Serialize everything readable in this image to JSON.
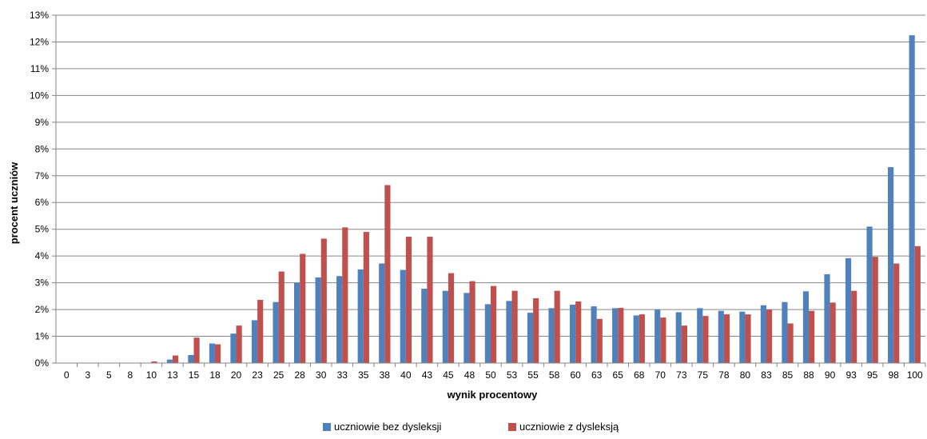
{
  "chart_data": {
    "type": "bar",
    "title": "",
    "xlabel": "wynik procentowy",
    "ylabel": "procent  uczniów",
    "ylim": [
      0,
      13
    ],
    "y_tick_suffix": "%",
    "grid": true,
    "legend_position": "bottom",
    "categories": [
      "0",
      "3",
      "5",
      "8",
      "10",
      "13",
      "15",
      "18",
      "20",
      "23",
      "25",
      "28",
      "30",
      "33",
      "35",
      "38",
      "40",
      "43",
      "45",
      "48",
      "50",
      "53",
      "55",
      "58",
      "60",
      "63",
      "65",
      "68",
      "70",
      "73",
      "75",
      "78",
      "80",
      "83",
      "85",
      "88",
      "90",
      "93",
      "95",
      "98",
      "100"
    ],
    "series": [
      {
        "name": "uczniowie bez dysleksji",
        "color": "#4F81BD",
        "values": [
          0,
          0,
          0,
          0,
          0,
          0.13,
          0.3,
          0.73,
          1.1,
          1.6,
          2.28,
          3.0,
          3.2,
          3.25,
          3.5,
          3.72,
          3.48,
          2.78,
          2.7,
          2.62,
          2.2,
          2.32,
          1.88,
          2.05,
          2.18,
          2.12,
          2.05,
          1.78,
          2.0,
          1.9,
          2.05,
          1.95,
          1.92,
          2.16,
          2.28,
          2.68,
          3.32,
          3.92,
          5.1,
          7.32,
          12.25
        ]
      },
      {
        "name": "uczniowie z dysleksją",
        "color": "#C0504D",
        "values": [
          0,
          0,
          0,
          0,
          0.06,
          0.28,
          0.95,
          0.7,
          1.4,
          2.36,
          3.42,
          4.08,
          4.65,
          5.07,
          4.9,
          6.65,
          4.72,
          4.72,
          3.36,
          3.06,
          2.88,
          2.7,
          2.42,
          2.7,
          2.3,
          1.65,
          2.06,
          1.82,
          1.7,
          1.4,
          1.76,
          1.82,
          1.82,
          2.0,
          1.48,
          1.95,
          2.26,
          2.7,
          3.97,
          3.72,
          4.37
        ]
      }
    ]
  }
}
